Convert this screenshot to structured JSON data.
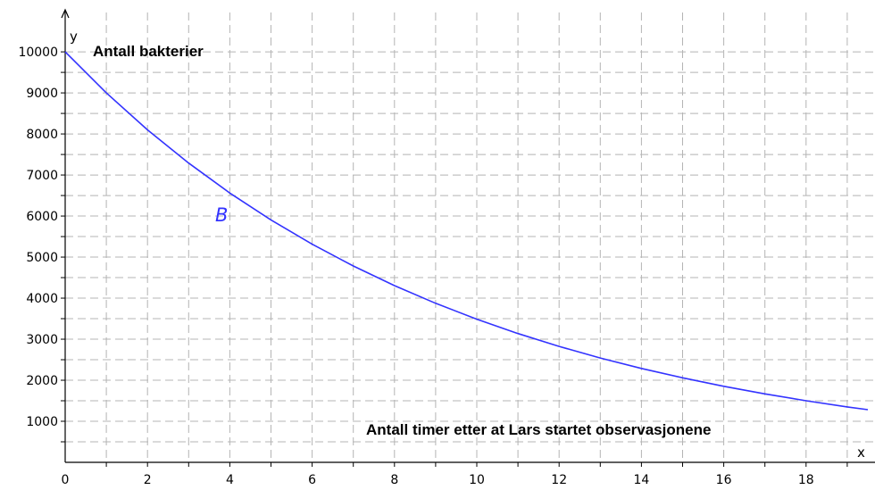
{
  "chart_data": {
    "type": "line",
    "title": "Antall bakterier",
    "xlabel": "Antall timer etter at Lars startet observasjonene",
    "ylabel": "",
    "x_axis_letter": "x",
    "y_axis_letter": "y",
    "xlim": [
      0,
      19.5
    ],
    "ylim": [
      0,
      10300
    ],
    "x_ticks": [
      "0",
      "2",
      "4",
      "6",
      "8",
      "10",
      "12",
      "14",
      "16",
      "18"
    ],
    "y_ticks": [
      "1000",
      "2000",
      "3000",
      "4000",
      "5000",
      "6000",
      "7000",
      "8000",
      "9000",
      "10000"
    ],
    "grid": true,
    "grid_style": "dashed",
    "series": [
      {
        "name": "B",
        "color": "#3333ff",
        "x": [
          0,
          1,
          2,
          3,
          4,
          5,
          6,
          7,
          8,
          9,
          10,
          11,
          12,
          13,
          14,
          15,
          16,
          17,
          18,
          19,
          19.5
        ],
        "y": [
          10000,
          9000,
          8100,
          7290,
          6561,
          5905,
          5314,
          4783,
          4305,
          3874,
          3487,
          3138,
          2824,
          2542,
          2288,
          2059,
          1853,
          1668,
          1501,
          1351,
          1282
        ]
      }
    ]
  }
}
